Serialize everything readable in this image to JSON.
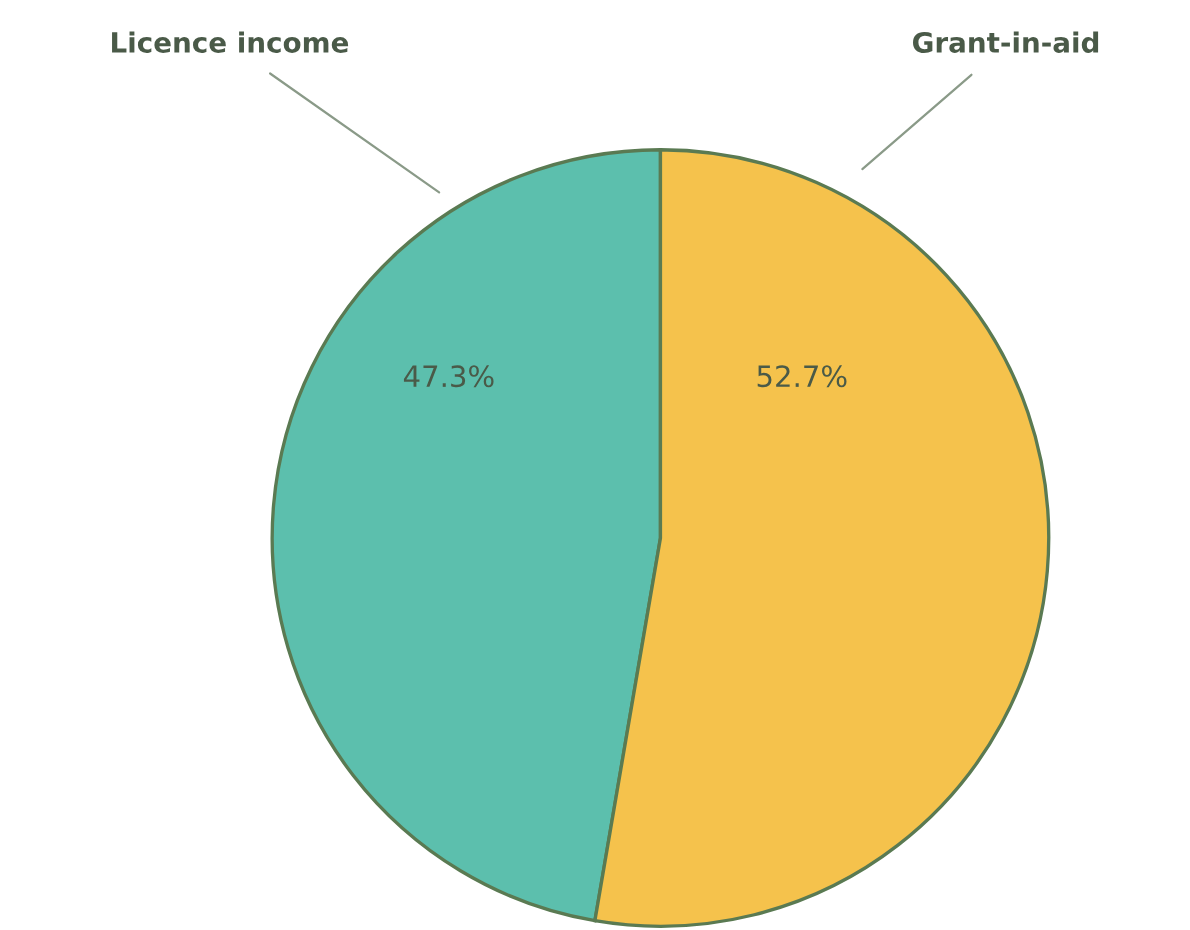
{
  "chart_data": {
    "type": "pie",
    "categories": [
      "Licence income",
      "Grant-in-aid"
    ],
    "values": [
      47.3,
      52.7
    ],
    "colors": [
      "#5cbfad",
      "#f5c24c"
    ],
    "value_labels": [
      "47.3%",
      "52.7%"
    ]
  }
}
